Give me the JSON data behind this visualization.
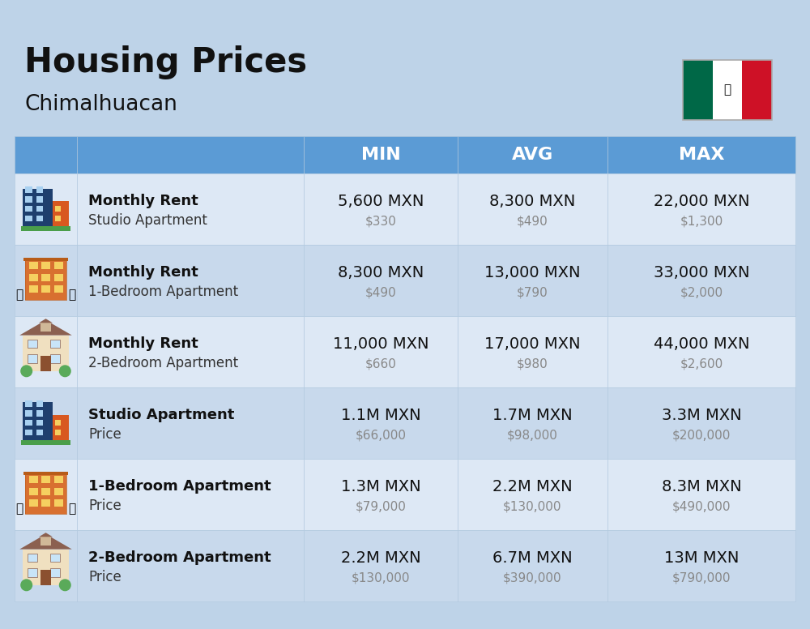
{
  "title": "Housing Prices",
  "subtitle": "Chimalhuacan",
  "bg_color": "#bed3e8",
  "header_bg": "#5b9bd5",
  "header_text_color": "#ffffff",
  "col_headers": [
    "MIN",
    "AVG",
    "MAX"
  ],
  "rows": [
    {
      "bold_label": "Monthly Rent",
      "sub_label": "Studio Apartment",
      "icon_type": "blue_office",
      "min_main": "5,600 MXN",
      "min_sub": "$330",
      "avg_main": "8,300 MXN",
      "avg_sub": "$490",
      "max_main": "22,000 MXN",
      "max_sub": "$1,300"
    },
    {
      "bold_label": "Monthly Rent",
      "sub_label": "1-Bedroom Apartment",
      "icon_type": "orange_apt",
      "min_main": "8,300 MXN",
      "min_sub": "$490",
      "avg_main": "13,000 MXN",
      "avg_sub": "$790",
      "max_main": "33,000 MXN",
      "max_sub": "$2,000"
    },
    {
      "bold_label": "Monthly Rent",
      "sub_label": "2-Bedroom Apartment",
      "icon_type": "beige_house",
      "min_main": "11,000 MXN",
      "min_sub": "$660",
      "avg_main": "17,000 MXN",
      "avg_sub": "$980",
      "max_main": "44,000 MXN",
      "max_sub": "$2,600"
    },
    {
      "bold_label": "Studio Apartment",
      "sub_label": "Price",
      "icon_type": "blue_office",
      "min_main": "1.1M MXN",
      "min_sub": "$66,000",
      "avg_main": "1.7M MXN",
      "avg_sub": "$98,000",
      "max_main": "3.3M MXN",
      "max_sub": "$200,000"
    },
    {
      "bold_label": "1-Bedroom Apartment",
      "sub_label": "Price",
      "icon_type": "orange_apt",
      "min_main": "1.3M MXN",
      "min_sub": "$79,000",
      "avg_main": "2.2M MXN",
      "avg_sub": "$130,000",
      "max_main": "8.3M MXN",
      "max_sub": "$490,000"
    },
    {
      "bold_label": "2-Bedroom Apartment",
      "sub_label": "Price",
      "icon_type": "beige_house",
      "min_main": "2.2M MXN",
      "min_sub": "$130,000",
      "avg_main": "6.7M MXN",
      "avg_sub": "$390,000",
      "max_main": "13M MXN",
      "max_sub": "$790,000"
    }
  ]
}
